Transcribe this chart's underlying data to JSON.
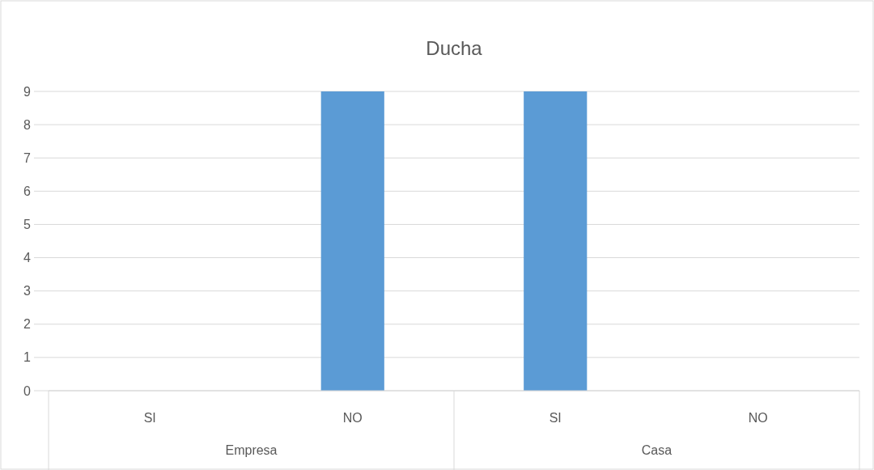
{
  "chart_data": {
    "type": "bar",
    "title": "Ducha",
    "categories": [
      "SI",
      "NO",
      "SI",
      "NO"
    ],
    "values": [
      0,
      9,
      9,
      0
    ],
    "color": "#5b9bd5",
    "ylim": [
      0,
      9
    ],
    "yticks": [
      0,
      1,
      2,
      3,
      4,
      5,
      6,
      7,
      8,
      9
    ],
    "grid": "y",
    "annotations": [
      "Empresa",
      "Casa"
    ]
  }
}
